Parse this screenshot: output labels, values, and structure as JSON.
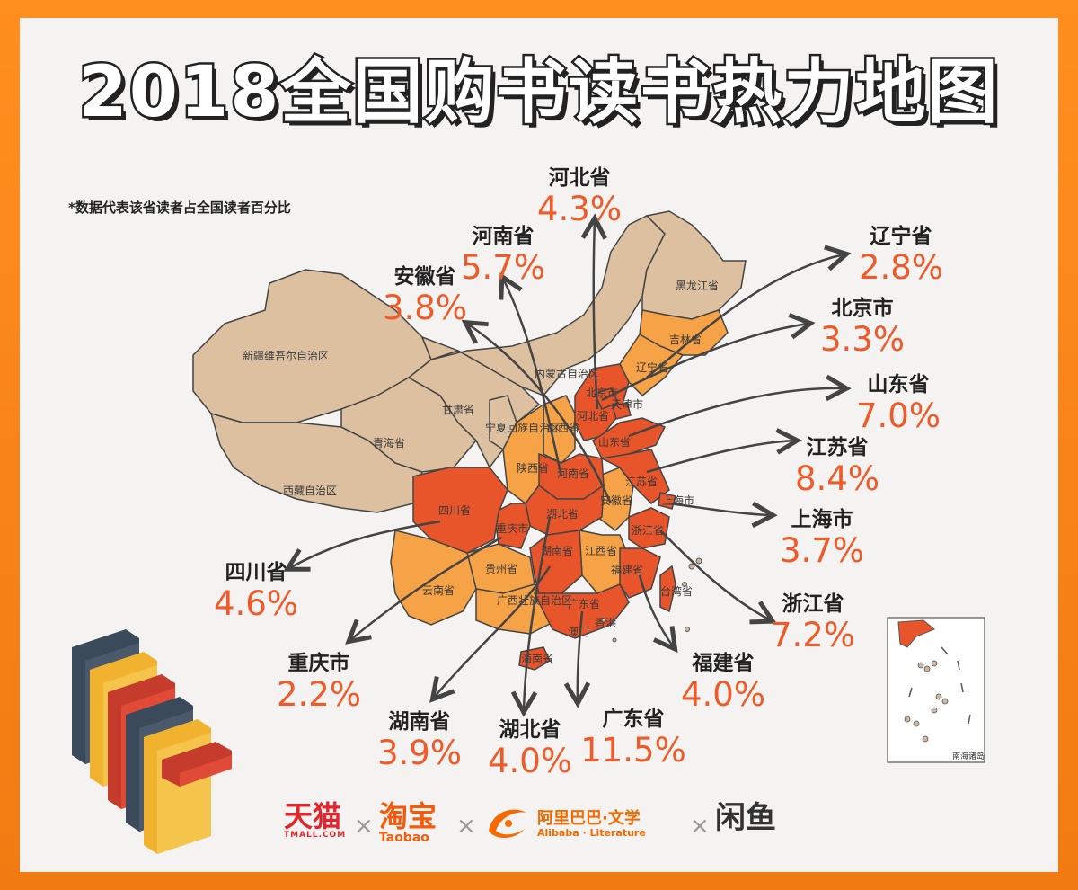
{
  "title": "2018全国购书读书热力地图",
  "note": "*数据代表该省读者占全国读者百分比",
  "map_labels": {
    "xinjiang": "新疆维吾尔自治区",
    "xizang": "西藏自治区",
    "qinghai": "青海省",
    "gansu": "甘肃省",
    "neimenggu": "内蒙古自治区",
    "heilongjiang": "黑龙江省",
    "jilin": "吉林省",
    "liaoning": "辽宁省",
    "beijing": "北京市",
    "tianjin": "天津市",
    "hebei": "河北省",
    "shanxi": "山西省",
    "shaanxi": "陕西省",
    "ningxia": "宁夏回族自治区",
    "shandong": "山东省",
    "henan": "河南省",
    "jiangsu": "江苏省",
    "anhui": "安徽省",
    "shanghai": "上海市",
    "hubei": "湖北省",
    "sichuan": "四川省",
    "chongqing": "重庆市",
    "zhejiang": "浙江省",
    "hunan": "湖南省",
    "jiangxi": "江西省",
    "guizhou": "贵州省",
    "fujian": "福建省",
    "yunnan": "云南省",
    "guangxi": "广西壮族自治区",
    "guangdong": "广东省",
    "taiwan": "台湾省",
    "hongkong": "香港",
    "macau": "澳门",
    "hainan": "海南省",
    "nanhai": "南海诸岛"
  },
  "callouts": [
    {
      "name": "河北省",
      "value": "4.3%"
    },
    {
      "name": "河南省",
      "value": "5.7%"
    },
    {
      "name": "安徽省",
      "value": "3.8%"
    },
    {
      "name": "辽宁省",
      "value": "2.8%"
    },
    {
      "name": "北京市",
      "value": "3.3%"
    },
    {
      "name": "山东省",
      "value": "7.0%"
    },
    {
      "name": "江苏省",
      "value": "8.4%"
    },
    {
      "name": "上海市",
      "value": "3.7%"
    },
    {
      "name": "浙江省",
      "value": "7.2%"
    },
    {
      "name": "福建省",
      "value": "4.0%"
    },
    {
      "name": "广东省",
      "value": "11.5%"
    },
    {
      "name": "湖北省",
      "value": "4.0%"
    },
    {
      "name": "湖南省",
      "value": "3.9%"
    },
    {
      "name": "重庆市",
      "value": "2.2%"
    },
    {
      "name": "四川省",
      "value": "4.6%"
    }
  ],
  "colors": {
    "high": "#e8552a",
    "medium": "#f6a348",
    "low": "#dcc0a0",
    "value_text": "#ef5a28"
  },
  "logos": {
    "tmall": "天猫",
    "tmall_sub": "TMALL.COM",
    "taobao": "淘宝",
    "taobao_sub": "Taobao",
    "alibaba": "阿里巴巴·文学",
    "alibaba_sub": "Alibaba · Literature",
    "xianyu": "闲鱼",
    "times": "×"
  },
  "icons": [
    "books-illustration-icon",
    "nanhai-inset-map-icon"
  ]
}
